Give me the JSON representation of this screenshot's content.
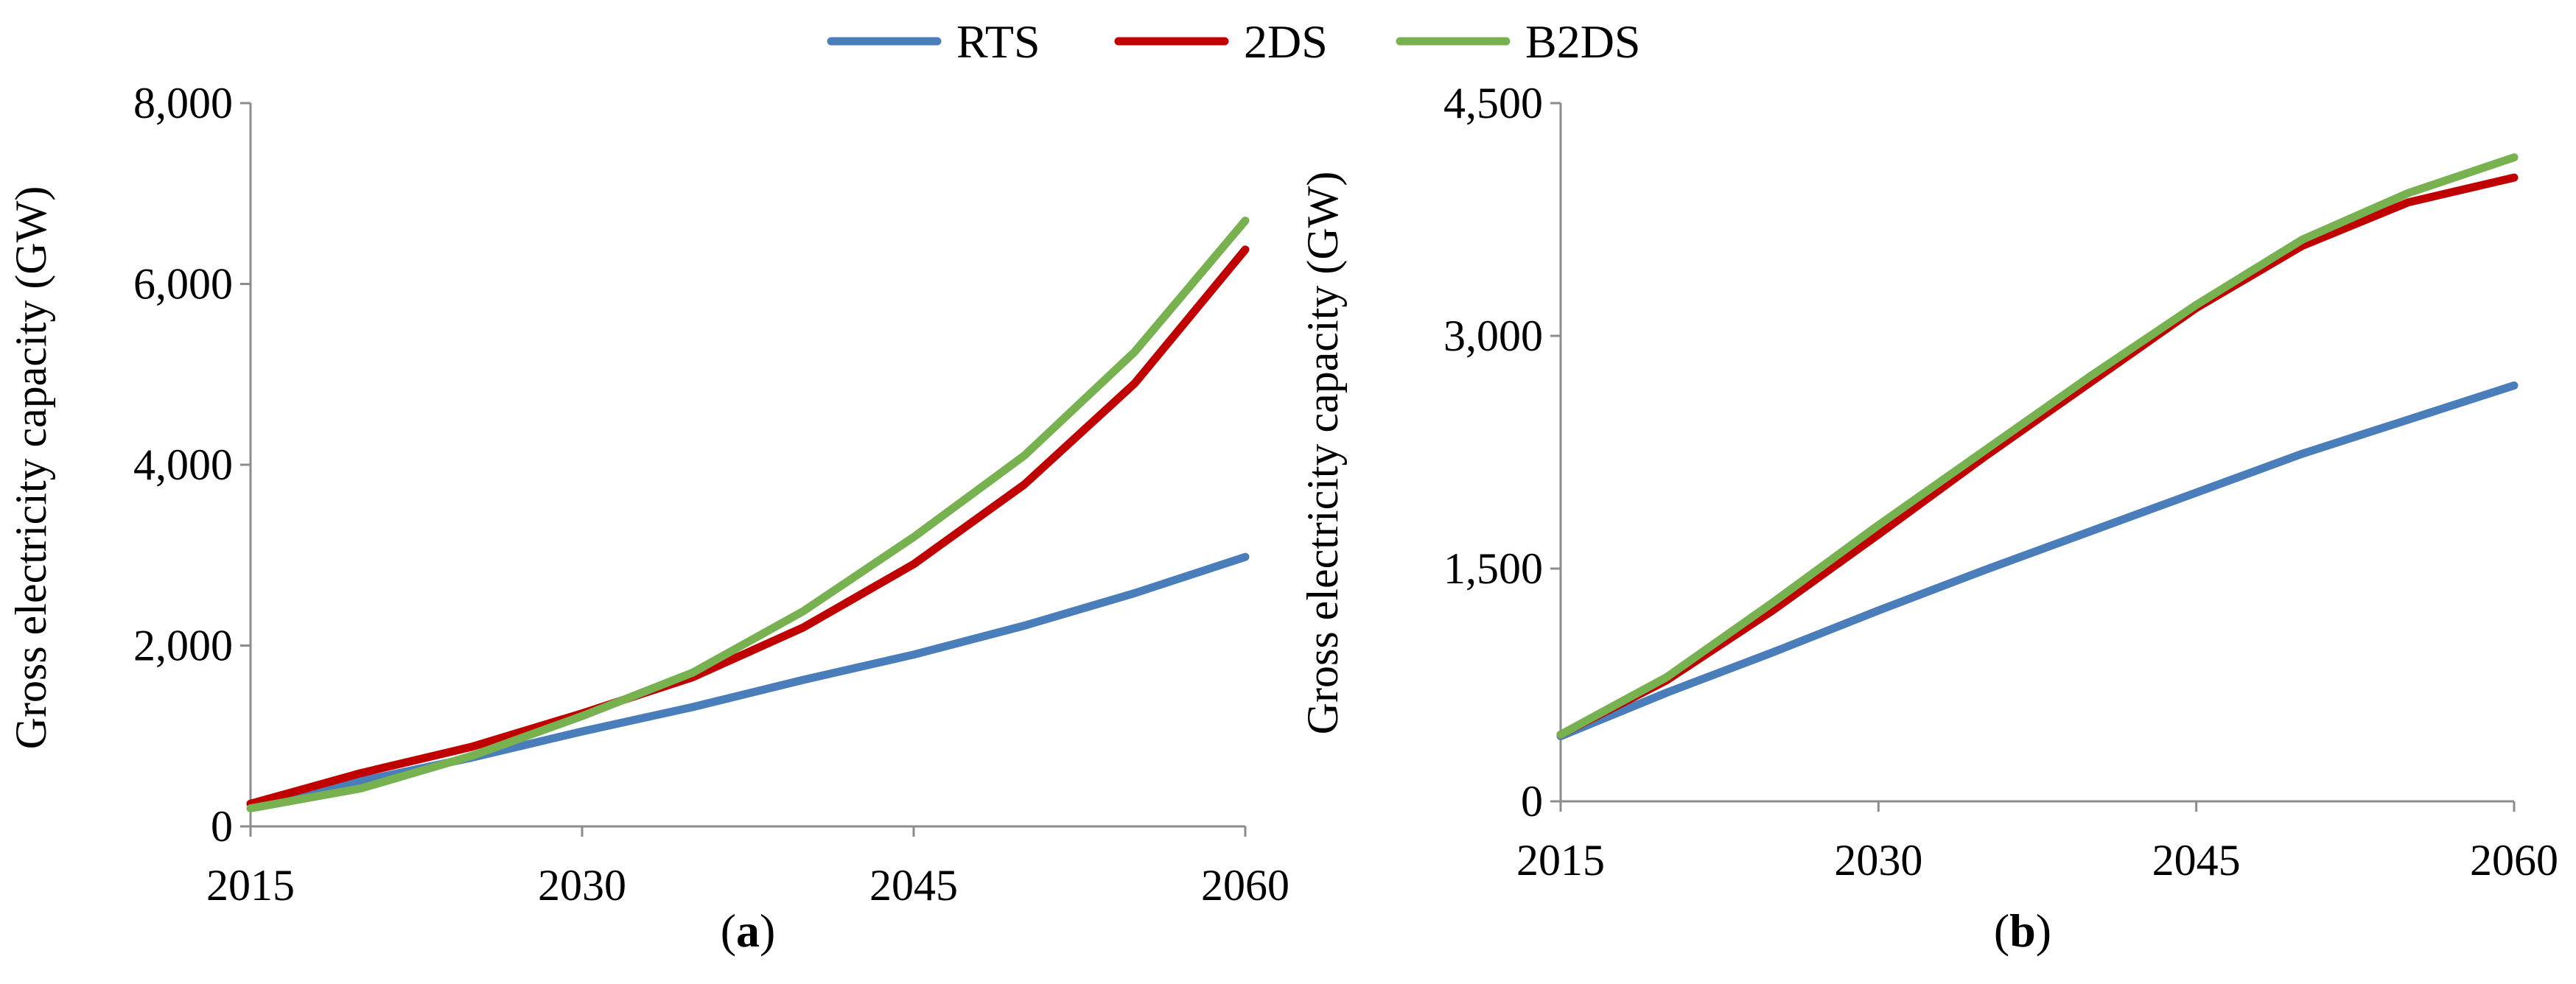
{
  "chart_data": [
    {
      "type": "line",
      "panel_label": "a",
      "panel_label_open": "(",
      "panel_label_close": ")",
      "title": "",
      "xlabel": "",
      "ylabel": "Gross electricity capacity (GW)",
      "xlim": [
        2015,
        2060
      ],
      "ylim": [
        0,
        8000
      ],
      "x_ticks": [
        2015,
        2030,
        2045,
        2060
      ],
      "x_tick_labels": [
        "2015",
        "2030",
        "2045",
        "2060"
      ],
      "y_ticks": [
        0,
        2000,
        4000,
        6000,
        8000
      ],
      "y_tick_labels": [
        "0",
        "2,000",
        "4,000",
        "6,000",
        "8,000"
      ],
      "grid": false,
      "x": [
        2015,
        2020,
        2025,
        2030,
        2035,
        2040,
        2045,
        2050,
        2055,
        2060
      ],
      "series": [
        {
          "name": "RTS",
          "color": "#4a7ebb",
          "values": [
            250,
            500,
            760,
            1050,
            1320,
            1620,
            1900,
            2220,
            2580,
            2980
          ]
        },
        {
          "name": "2DS",
          "color": "#c00000",
          "values": [
            250,
            590,
            880,
            1250,
            1650,
            2200,
            2900,
            3780,
            4900,
            6380
          ]
        },
        {
          "name": "B2DS",
          "color": "#77b150",
          "values": [
            200,
            420,
            780,
            1220,
            1700,
            2380,
            3200,
            4100,
            5250,
            6700
          ]
        }
      ]
    },
    {
      "type": "line",
      "panel_label": "b",
      "panel_label_open": "(",
      "panel_label_close": ")",
      "title": "",
      "xlabel": "",
      "ylabel": "Gross electricity capacity (GW)",
      "xlim": [
        2015,
        2060
      ],
      "ylim": [
        0,
        4500
      ],
      "x_ticks": [
        2015,
        2030,
        2045,
        2060
      ],
      "x_tick_labels": [
        "2015",
        "2030",
        "2045",
        "2060"
      ],
      "y_ticks": [
        0,
        1500,
        3000,
        4500
      ],
      "y_tick_labels": [
        "0",
        "1,500",
        "3,000",
        "4,500"
      ],
      "grid": false,
      "x": [
        2015,
        2020,
        2025,
        2030,
        2035,
        2040,
        2045,
        2050,
        2055,
        2060
      ],
      "series": [
        {
          "name": "RTS",
          "color": "#4a7ebb",
          "values": [
            420,
            700,
            960,
            1230,
            1490,
            1740,
            1990,
            2240,
            2460,
            2680
          ]
        },
        {
          "name": "2DS",
          "color": "#c00000",
          "values": [
            430,
            780,
            1230,
            1720,
            2220,
            2700,
            3180,
            3580,
            3860,
            4020
          ]
        },
        {
          "name": "B2DS",
          "color": "#77b150",
          "values": [
            430,
            800,
            1280,
            1780,
            2260,
            2740,
            3200,
            3620,
            3920,
            4150
          ]
        }
      ]
    }
  ],
  "legend": {
    "position": "top-center",
    "items": [
      {
        "name": "RTS",
        "color": "#4a7ebb"
      },
      {
        "name": "2DS",
        "color": "#c00000"
      },
      {
        "name": "B2DS",
        "color": "#77b150"
      }
    ]
  }
}
